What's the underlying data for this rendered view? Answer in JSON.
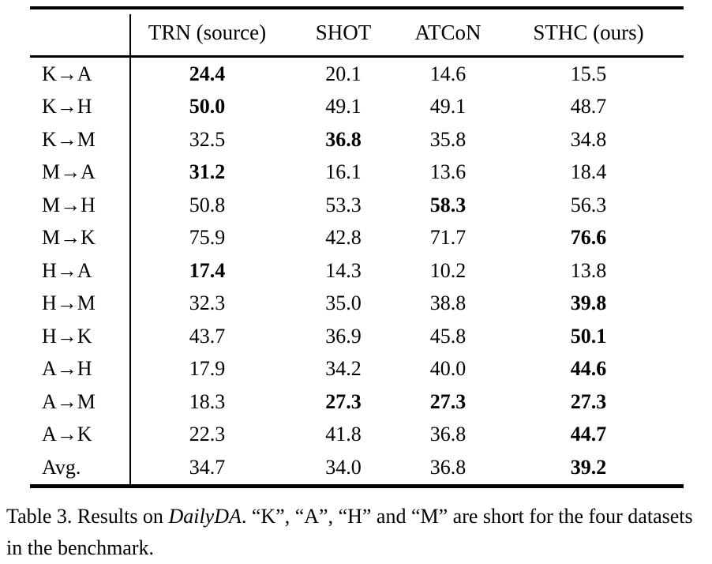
{
  "page": {
    "background_color": "#ffffff",
    "text_color": "#000000"
  },
  "table": {
    "columns": [
      "TRN (source)",
      "SHOT",
      "ATCoN",
      "STHC (ours)"
    ],
    "rows": [
      {
        "label": "K→A",
        "values": [
          "24.4",
          "20.1",
          "14.6",
          "15.5"
        ],
        "bold": [
          0
        ]
      },
      {
        "label": "K→H",
        "values": [
          "50.0",
          "49.1",
          "49.1",
          "48.7"
        ],
        "bold": [
          0
        ]
      },
      {
        "label": "K→M",
        "values": [
          "32.5",
          "36.8",
          "35.8",
          "34.8"
        ],
        "bold": [
          1
        ]
      },
      {
        "label": "M→A",
        "values": [
          "31.2",
          "16.1",
          "13.6",
          "18.4"
        ],
        "bold": [
          0
        ]
      },
      {
        "label": "M→H",
        "values": [
          "50.8",
          "53.3",
          "58.3",
          "56.3"
        ],
        "bold": [
          2
        ]
      },
      {
        "label": "M→K",
        "values": [
          "75.9",
          "42.8",
          "71.7",
          "76.6"
        ],
        "bold": [
          3
        ]
      },
      {
        "label": "H→A",
        "values": [
          "17.4",
          "14.3",
          "10.2",
          "13.8"
        ],
        "bold": [
          0
        ]
      },
      {
        "label": "H→M",
        "values": [
          "32.3",
          "35.0",
          "38.8",
          "39.8"
        ],
        "bold": [
          3
        ]
      },
      {
        "label": "H→K",
        "values": [
          "43.7",
          "36.9",
          "45.8",
          "50.1"
        ],
        "bold": [
          3
        ]
      },
      {
        "label": "A→H",
        "values": [
          "17.9",
          "34.2",
          "40.0",
          "44.6"
        ],
        "bold": [
          3
        ]
      },
      {
        "label": "A→M",
        "values": [
          "18.3",
          "27.3",
          "27.3",
          "27.3"
        ],
        "bold": [
          1,
          2,
          3
        ]
      },
      {
        "label": "A→K",
        "values": [
          "22.3",
          "41.8",
          "36.8",
          "44.7"
        ],
        "bold": [
          3
        ]
      },
      {
        "label": "Avg.",
        "values": [
          "34.7",
          "34.0",
          "36.8",
          "39.2"
        ],
        "bold": [
          3
        ]
      }
    ]
  },
  "caption": {
    "prefix": "Table 3. Results on ",
    "italic": "DailyDA",
    "suffix": ". “K”, “A”, “H” and “M” are short for the four datasets in the benchmark."
  }
}
